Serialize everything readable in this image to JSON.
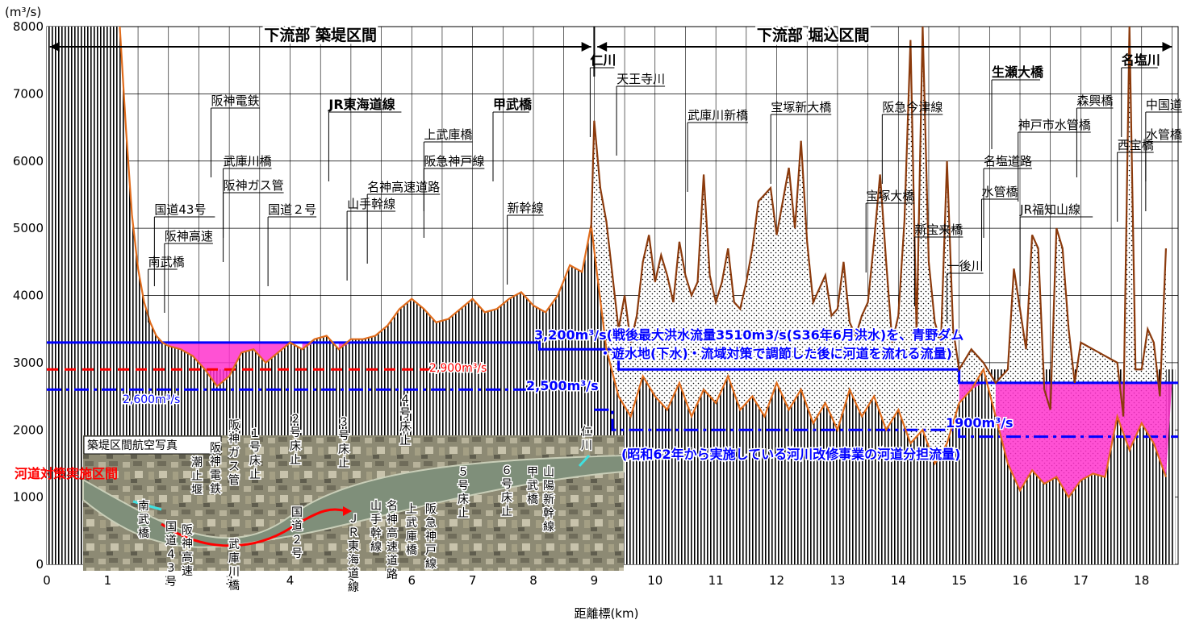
{
  "chart_data": {
    "type": "line",
    "ylabel": "(m³/s)",
    "xlabel": "距離標(km)",
    "xlim": [
      0,
      18.6
    ],
    "ylim": [
      0,
      8000
    ],
    "x_ticks": [
      0,
      1,
      2,
      3,
      4,
      5,
      6,
      7,
      8,
      9,
      10,
      11,
      12,
      13,
      14,
      15,
      16,
      17,
      18
    ],
    "y_ticks": [
      0,
      1000,
      2000,
      3000,
      4000,
      5000,
      6000,
      7000,
      8000
    ],
    "sections": [
      {
        "label": "下流部 築堤区間",
        "x_start": 0,
        "x_end": 9
      },
      {
        "label": "下流部 堀込区間",
        "x_start": 9,
        "x_end": 18.5
      }
    ],
    "series": [
      {
        "name": "",
        "color": "#e06c1c",
        "x": [
          1.2,
          1.3,
          1.4,
          1.5,
          1.6,
          1.7,
          1.8,
          1.9,
          2.0,
          2.2,
          2.4,
          2.6,
          2.8,
          3.0,
          3.2,
          3.4,
          3.6,
          3.8,
          4.0,
          4.2,
          4.4,
          4.6,
          4.8,
          5.0,
          5.2,
          5.4,
          5.6,
          5.8,
          6.0,
          6.2,
          6.4,
          6.6,
          6.8,
          7.0,
          7.2,
          7.4,
          7.6,
          7.8,
          8.0,
          8.2,
          8.4,
          8.6,
          8.8,
          8.95,
          9.05,
          9.2,
          9.4,
          9.6,
          9.8,
          10.0,
          10.2,
          10.4,
          10.6,
          10.8,
          11.0,
          11.2,
          11.4,
          11.6,
          11.8,
          12.0,
          12.2,
          12.4,
          12.6,
          12.8,
          13.0,
          13.2,
          13.4,
          13.6,
          13.8,
          14.0,
          14.2,
          14.4,
          14.6,
          14.8,
          15.0,
          15.2,
          15.4,
          15.6,
          15.8,
          16.0,
          16.2,
          16.4,
          16.6,
          16.8,
          17.0,
          17.2,
          17.4,
          17.6,
          17.8,
          18.0,
          18.2,
          18.4
        ],
        "y": [
          8000,
          6500,
          5200,
          4400,
          3900,
          3600,
          3400,
          3300,
          3250,
          3200,
          3100,
          2900,
          2650,
          2800,
          3150,
          3200,
          3000,
          3150,
          3300,
          3200,
          3350,
          3400,
          3200,
          3350,
          3350,
          3400,
          3550,
          3800,
          3950,
          3800,
          3600,
          3650,
          3800,
          3950,
          3750,
          3800,
          3950,
          4050,
          3850,
          3750,
          4000,
          4450,
          4350,
          5050,
          4300,
          3200,
          2500,
          2200,
          2800,
          2500,
          2300,
          2700,
          2200,
          2600,
          2400,
          2800,
          2300,
          2500,
          2200,
          2700,
          2300,
          2600,
          2100,
          2400,
          2000,
          2600,
          2200,
          2500,
          2000,
          2300,
          1800,
          2000,
          1500,
          1800,
          2400,
          2600,
          2900,
          2200,
          1500,
          1100,
          1400,
          1200,
          1300,
          1000,
          1250,
          1350,
          1300,
          2200,
          1700,
          2100,
          1800,
          1300
        ]
      },
      {
        "name": "",
        "color": "#8b3a0c",
        "x": [
          8.95,
          9.0,
          9.1,
          9.2,
          9.3,
          9.4,
          9.5,
          9.6,
          9.7,
          9.8,
          9.9,
          10.0,
          10.1,
          10.2,
          10.3,
          10.4,
          10.5,
          10.6,
          10.7,
          10.8,
          10.9,
          11.0,
          11.1,
          11.2,
          11.3,
          11.4,
          11.5,
          11.6,
          11.7,
          11.8,
          11.9,
          12.0,
          12.1,
          12.2,
          12.3,
          12.4,
          12.5,
          12.6,
          12.7,
          12.8,
          12.9,
          13.0,
          13.1,
          13.2,
          13.3,
          13.4,
          13.5,
          13.6,
          13.7,
          13.8,
          13.9,
          14.0,
          14.1,
          14.2,
          14.3,
          14.4,
          14.5,
          14.6,
          14.7,
          14.8,
          14.9,
          15.0,
          15.2,
          15.4,
          15.6,
          15.8,
          15.9,
          16.0,
          16.1,
          16.2,
          16.3,
          16.4,
          16.5,
          16.6,
          16.7,
          16.8,
          16.9,
          17.0,
          17.2,
          17.4,
          17.6,
          17.7,
          17.8,
          17.9,
          18.0,
          18.1,
          18.2,
          18.3,
          18.4
        ],
        "y": [
          5000,
          6600,
          5600,
          5100,
          4300,
          3500,
          4000,
          3300,
          3700,
          4500,
          4900,
          4200,
          4600,
          4300,
          3900,
          4800,
          4300,
          4000,
          4200,
          5800,
          4300,
          3900,
          4200,
          4700,
          3900,
          3800,
          4200,
          4700,
          5400,
          5500,
          5600,
          4900,
          5400,
          5900,
          5000,
          6300,
          4800,
          3900,
          4100,
          4300,
          3700,
          3800,
          4500,
          3600,
          3400,
          3700,
          3900,
          4800,
          5800,
          4500,
          3300,
          3700,
          5100,
          7800,
          3400,
          8000,
          4500,
          3600,
          3300,
          6000,
          3500,
          2900,
          3200,
          3000,
          2700,
          2900,
          4400,
          3800,
          3200,
          4900,
          4700,
          2600,
          2300,
          5000,
          4700,
          3500,
          2700,
          3300,
          3200,
          3100,
          3000,
          2200,
          8000,
          2900,
          2900,
          3500,
          3300,
          2500,
          4700
        ]
      }
    ],
    "design_flows": [
      {
        "label": "3,200m³/s",
        "color": "#0000ff",
        "style": "solid"
      },
      {
        "label": "2,900m³/s",
        "color": "#ff0000",
        "style": "dashed"
      },
      {
        "label": "2,600m³/s",
        "color": "#0000ff",
        "style": "dashed"
      },
      {
        "label": "2,500m³/s",
        "color": "#0000ff",
        "style": "dashed"
      },
      {
        "label": "1900m³/s",
        "color": "#0000ff",
        "style": "dashed"
      }
    ],
    "annotations": {
      "a1": "3,200m³/s(戦後最大洪水流量3510m3/s(S36年6月洪水)を、青野ダム",
      "a2": "・遊水地(下水)・流域対策で調節した後に河道を流れる流量)",
      "a3": "2,500m³/s",
      "a4": "1900m³/s",
      "a5": "(昭和62年から実施している河川改修事業の河道分担流量)",
      "red_label": "河道対策実施区間"
    },
    "landmarks": [
      {
        "label": "南武橋",
        "x": 1.8
      },
      {
        "label": "阪神高速",
        "x": 2.4
      },
      {
        "label": "国道43号",
        "x": 2.3
      },
      {
        "label": "阪神ガス管",
        "x": 2.9
      },
      {
        "label": "武庫川橋",
        "x": 2.9
      },
      {
        "label": "阪神電鉄",
        "x": 2.7
      },
      {
        "label": "国道２号",
        "x": 4.3
      },
      {
        "label": "JR東海道線",
        "x": 5.1
      },
      {
        "label": "山手幹線",
        "x": 5.6
      },
      {
        "label": "名神高速道路",
        "x": 5.8
      },
      {
        "label": "阪急神戸線",
        "x": 6.2
      },
      {
        "label": "上武庫橋",
        "x": 6.2
      },
      {
        "label": "新幹線",
        "x": 8.3
      },
      {
        "label": "甲武橋",
        "x": 8.0
      },
      {
        "label": "仁川",
        "x": 9.0
      },
      {
        "label": "天王寺川",
        "x": 9.5
      },
      {
        "label": "武庫川新橋",
        "x": 10.8
      },
      {
        "label": "宝塚新大橋",
        "x": 12.5
      },
      {
        "label": "阪急今津線",
        "x": 14.2
      },
      {
        "label": "宝塚大橋",
        "x": 13.8
      },
      {
        "label": "新宝来橋",
        "x": 14.4
      },
      {
        "label": "一後川",
        "x": 14.8
      },
      {
        "label": "生瀬大橋",
        "x": 16.0
      },
      {
        "label": "水管橋",
        "x": 15.9
      },
      {
        "label": "名塩道路",
        "x": 16.0
      },
      {
        "label": "JR福知山線",
        "x": 16.4
      },
      {
        "label": "神戸市水管橋",
        "x": 16.5
      },
      {
        "label": "森興橋",
        "x": 17.0
      },
      {
        "label": "西宝橋",
        "x": 17.8
      },
      {
        "label": "名塩川",
        "x": 18.0
      },
      {
        "label": "中国道",
        "x": 18.2
      },
      {
        "label": "水管橋",
        "x": 18.2
      }
    ],
    "photo": {
      "title": "築堤区間航空写真",
      "labels": [
        "南武橋",
        "国道43号",
        "阪神高速",
        "潮止堰",
        "阪神電鉄",
        "阪神ガス管",
        "１号床止",
        "武庫川橋",
        "２号床止",
        "国道２号",
        "３号床止",
        "ＪＲ東海道線",
        "４号床止",
        "山手幹線",
        "名神高速道路",
        "上武庫橋",
        "阪急神戸線",
        "５号床止",
        "６号床止",
        "甲武橋",
        "山陽新幹線",
        "仁川"
      ]
    }
  }
}
